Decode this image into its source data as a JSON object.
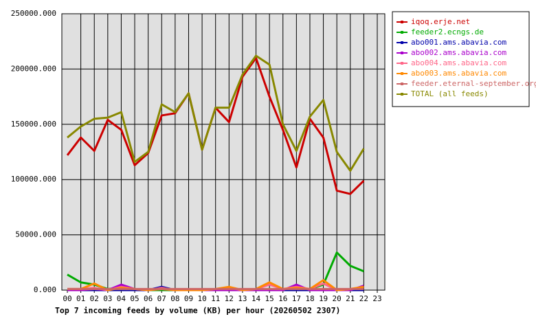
{
  "chart_data": {
    "type": "line",
    "title": "Top 7 incoming feeds by volume (KB) per hour (20260502 2307)",
    "categories": [
      "00",
      "01",
      "02",
      "03",
      "04",
      "05",
      "06",
      "07",
      "08",
      "09",
      "10",
      "11",
      "12",
      "13",
      "14",
      "15",
      "16",
      "17",
      "18",
      "19",
      "20",
      "21",
      "22",
      "23"
    ],
    "ylim": [
      0,
      250000
    ],
    "yticks": [
      {
        "value": 0,
        "label": "0.000"
      },
      {
        "value": 50000,
        "label": "50000.000"
      },
      {
        "value": 100000,
        "label": "100000.000"
      },
      {
        "value": 150000,
        "label": "150000.000"
      },
      {
        "value": 200000,
        "label": "200000.000"
      },
      {
        "value": 250000,
        "label": "250000.000"
      }
    ],
    "grid": true,
    "legend": "right",
    "series": [
      {
        "name": "iqoq.erje.net",
        "color": "#cc0000",
        "values": [
          122000,
          138000,
          126000,
          154000,
          145000,
          113000,
          124000,
          158000,
          160000,
          178000,
          127000,
          165000,
          152000,
          193000,
          210000,
          175000,
          145000,
          111000,
          155000,
          138000,
          90000,
          87000,
          99000,
          null
        ]
      },
      {
        "name": "feeder2.ecngs.de",
        "color": "#00aa00",
        "values": [
          14000,
          7000,
          5000,
          1000,
          2000,
          1000,
          0,
          0,
          0,
          0,
          0,
          0,
          0,
          0,
          0,
          0,
          0,
          0,
          1000,
          5000,
          34000,
          22000,
          17000,
          null
        ]
      },
      {
        "name": "abo001.ams.abavia.com",
        "color": "#0000aa",
        "values": [
          0,
          0,
          0,
          0,
          0,
          0,
          0,
          3000,
          0,
          0,
          0,
          0,
          0,
          0,
          0,
          0,
          0,
          0,
          0,
          0,
          0,
          0,
          0,
          null
        ]
      },
      {
        "name": "abo002.ams.abavia.com",
        "color": "#aa00cc",
        "values": [
          0,
          0,
          1000,
          0,
          5000,
          1000,
          0,
          1000,
          0,
          0,
          0,
          0,
          0,
          0,
          0,
          0,
          0,
          5000,
          0,
          0,
          0,
          0,
          4000,
          null
        ]
      },
      {
        "name": "abo004.ams.abavia.com",
        "color": "#ff6688",
        "values": [
          1000,
          1000,
          2000,
          0,
          3000,
          1000,
          0,
          2000,
          0,
          0,
          0,
          1000,
          2000,
          0,
          1000,
          5000,
          1000,
          3000,
          1000,
          6000,
          0,
          1000,
          3000,
          null
        ]
      },
      {
        "name": "abo003.ams.abavia.com",
        "color": "#ff8800",
        "values": [
          1000,
          1000,
          6000,
          0,
          2000,
          1000,
          0,
          1000,
          0,
          0,
          0,
          1000,
          3000,
          0,
          1000,
          7000,
          1000,
          2000,
          1000,
          9000,
          0,
          1000,
          3000,
          null
        ]
      },
      {
        "name": "feeder.eternal-september.org",
        "color": "#cc6666",
        "values": [
          1000,
          1000,
          1000,
          1000,
          1000,
          1000,
          1000,
          1000,
          1000,
          1000,
          1000,
          1000,
          1000,
          1000,
          1000,
          1000,
          1000,
          1000,
          1000,
          1000,
          1000,
          1000,
          1000,
          null
        ]
      },
      {
        "name": "TOTAL (all feeds)",
        "color": "#888800",
        "values": [
          138000,
          148000,
          155000,
          156000,
          161000,
          116000,
          125000,
          168000,
          161000,
          178000,
          127000,
          165000,
          165000,
          195000,
          212000,
          204000,
          150000,
          126000,
          157000,
          172000,
          125000,
          108000,
          128000,
          null
        ]
      }
    ]
  }
}
